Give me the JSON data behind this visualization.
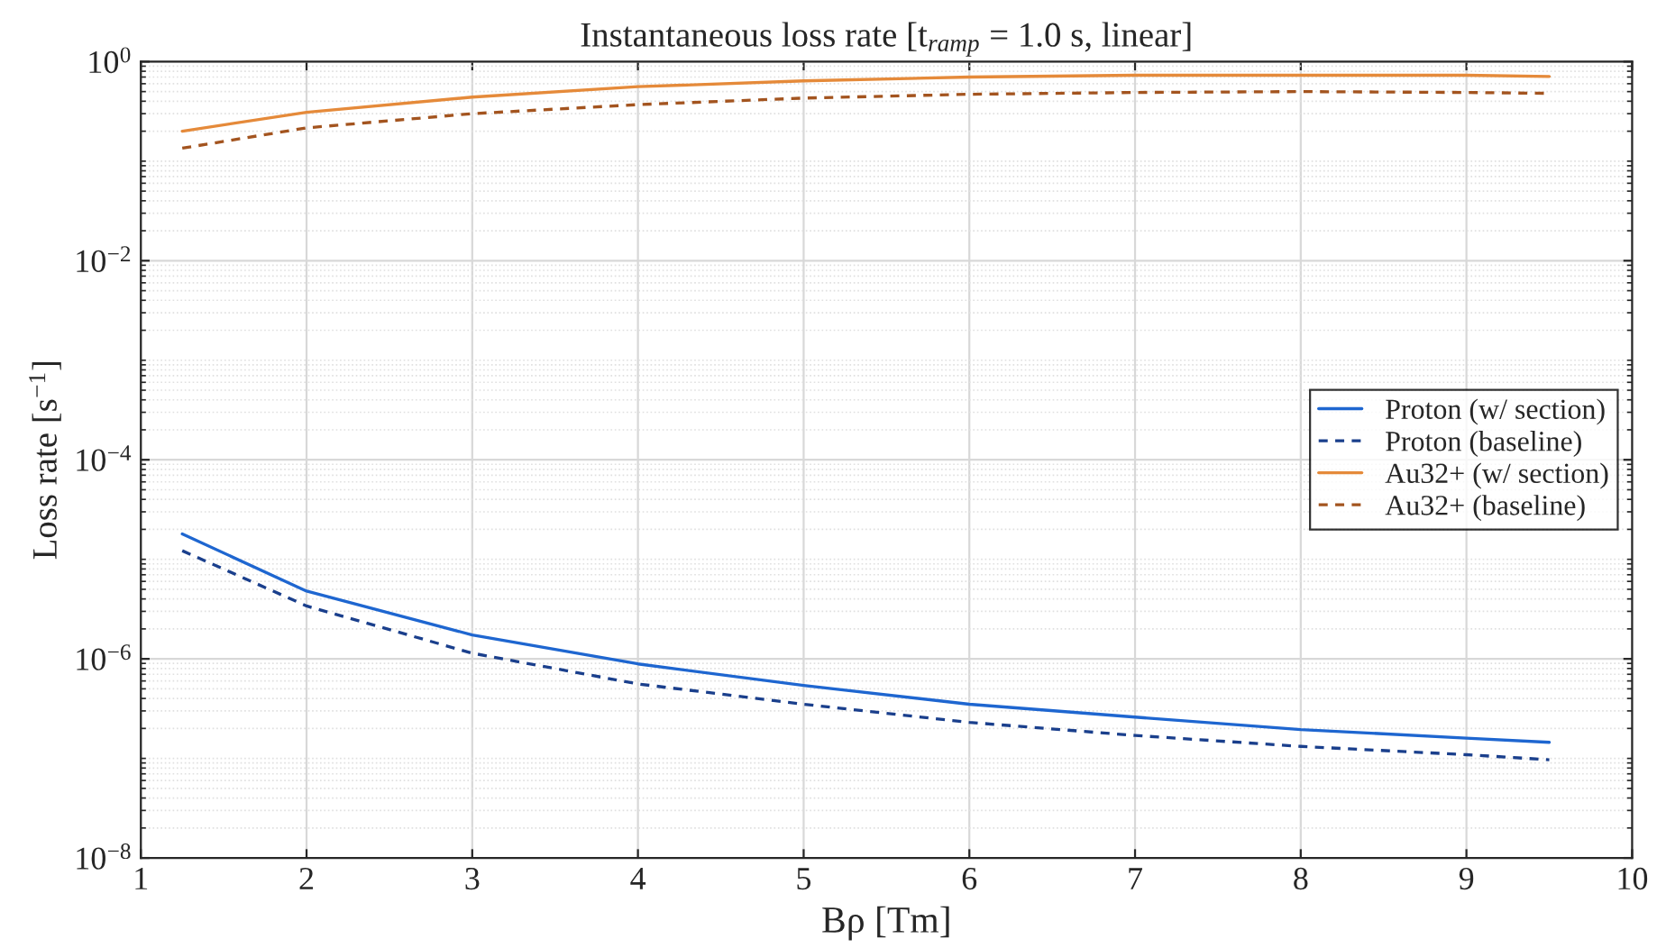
{
  "chart_data": {
    "type": "line",
    "title": "Instantaneous loss rate [t$_{ramp}$ = 1.0 s, linear]",
    "xlabel": "Bρ [Tm]",
    "ylabel": "Loss rate [s$^{−1}$]",
    "x": [
      1.25,
      2,
      3,
      4,
      5,
      6,
      7,
      8,
      9,
      9.5
    ],
    "series": [
      {
        "name": "Proton (w/ section)",
        "color": "#1e66d0",
        "line_style": "solid",
        "values": [
          1.8e-05,
          4.8e-06,
          1.74e-06,
          8.9e-07,
          5.4e-07,
          3.5e-07,
          2.6e-07,
          1.95e-07,
          1.6e-07,
          1.45e-07
        ]
      },
      {
        "name": "Proton (baseline)",
        "color": "#1a3f8c",
        "line_style": "dashed",
        "values": [
          1.22e-05,
          3.4e-06,
          1.14e-06,
          5.6e-07,
          3.5e-07,
          2.3e-07,
          1.7e-07,
          1.32e-07,
          1.09e-07,
          9.7e-08
        ]
      },
      {
        "name": "Au32+ (w/ section)",
        "color": "#e58a3a",
        "line_style": "solid",
        "values": [
          0.2,
          0.31,
          0.44,
          0.56,
          0.64,
          0.7,
          0.73,
          0.73,
          0.73,
          0.71
        ]
      },
      {
        "name": "Au32+ (baseline)",
        "color": "#a3541f",
        "line_style": "dashed",
        "values": [
          0.135,
          0.216,
          0.3,
          0.37,
          0.43,
          0.47,
          0.49,
          0.5,
          0.49,
          0.48
        ]
      }
    ],
    "log": "y",
    "xlim": [
      1,
      10
    ],
    "ylim": [
      1e-08,
      1
    ],
    "xticks": [
      1,
      2,
      3,
      4,
      5,
      6,
      7,
      8,
      9,
      10
    ],
    "yticks": [
      {
        "value": 1e-08,
        "label": "10$^{−8}$"
      },
      {
        "value": 1e-06,
        "label": "10$^{−6}$"
      },
      {
        "value": 0.0001,
        "label": "10$^{−4}$"
      },
      {
        "value": 0.01,
        "label": "10$^{−2}$"
      },
      {
        "value": 1,
        "label": "10$^{0}$"
      }
    ],
    "grid": true,
    "legend": "right",
    "marker": "none"
  }
}
